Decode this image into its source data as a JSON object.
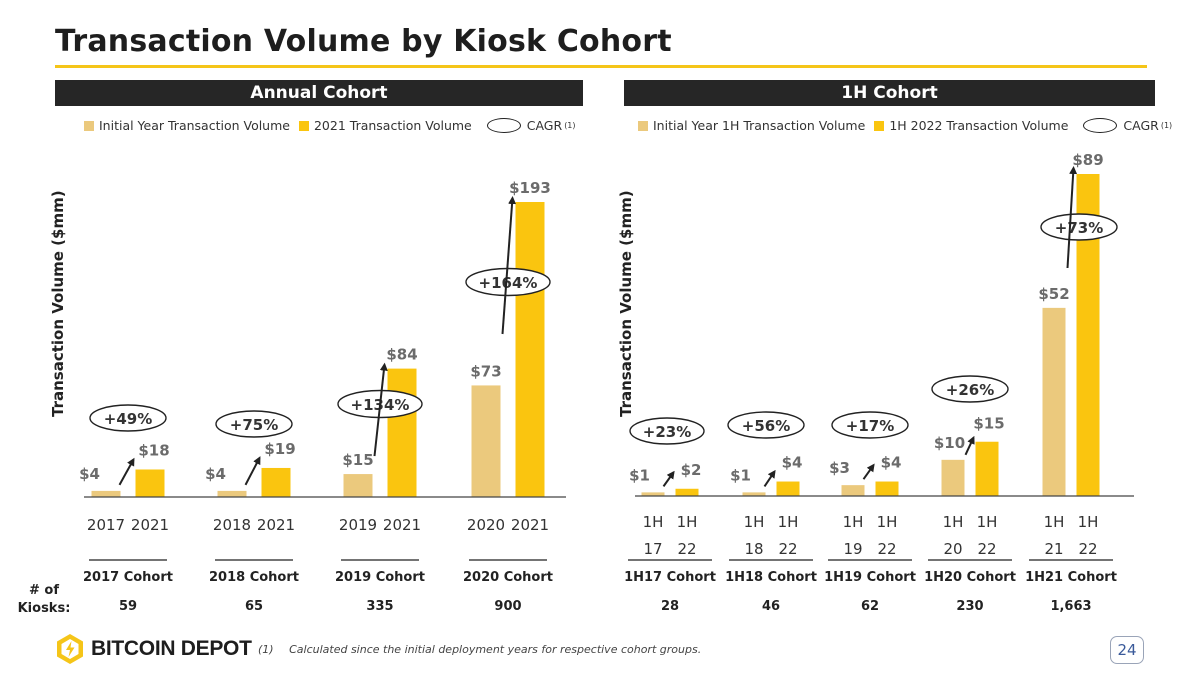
{
  "title": "Transaction Volume by Kiosk Cohort",
  "colors": {
    "initial": "#ebc97d",
    "current": "#fac50f",
    "accent": "#f5c518",
    "dark": "#262626"
  },
  "annual": {
    "header": "Annual Cohort",
    "legend": {
      "initial": "Initial Year Transaction Volume",
      "current": "2021 Transaction Volume",
      "cagr": "CAGR",
      "cagr_note": "(1)"
    },
    "ylabel": "Transaction Volume ($mm)"
  },
  "half": {
    "header": "1H Cohort",
    "legend": {
      "initial": "Initial Year 1H Transaction Volume",
      "current": "1H 2022 Transaction Volume",
      "cagr": "CAGR",
      "cagr_note": "(1)"
    },
    "ylabel": "Transaction Volume ($mm)"
  },
  "kiosks_label": [
    "# of",
    "Kiosks:"
  ],
  "footnote": {
    "num": "(1)",
    "text": "Calculated since the initial deployment years for respective cohort groups."
  },
  "logo": {
    "text": "BITCOIN DEPOT"
  },
  "page": "24",
  "chart_data": [
    {
      "type": "bar",
      "title": "Annual Cohort",
      "ylabel": "Transaction Volume ($mm)",
      "unit": "$mm",
      "ylim": [
        0,
        193
      ],
      "cohorts": [
        {
          "name": "2017 Cohort",
          "kiosks": "59",
          "initial_label": "2017",
          "current_label": "2021",
          "initial": 4,
          "current": 18,
          "initial_text": "$4",
          "current_text": "$18",
          "cagr": "+49%"
        },
        {
          "name": "2018 Cohort",
          "kiosks": "65",
          "initial_label": "2018",
          "current_label": "2021",
          "initial": 4,
          "current": 19,
          "initial_text": "$4",
          "current_text": "$19",
          "cagr": "+75%"
        },
        {
          "name": "2019 Cohort",
          "kiosks": "335",
          "initial_label": "2019",
          "current_label": "2021",
          "initial": 15,
          "current": 84,
          "initial_text": "$15",
          "current_text": "$84",
          "cagr": "+134%"
        },
        {
          "name": "2020 Cohort",
          "kiosks": "900",
          "initial_label": "2020",
          "current_label": "2021",
          "initial": 73,
          "current": 193,
          "initial_text": "$73",
          "current_text": "$193",
          "cagr": "+164%"
        }
      ]
    },
    {
      "type": "bar",
      "title": "1H Cohort",
      "ylabel": "Transaction Volume ($mm)",
      "unit": "$mm",
      "ylim": [
        0,
        89
      ],
      "cohorts": [
        {
          "name": "1H17 Cohort",
          "kiosks": "28",
          "initial_label": [
            "1H",
            "17"
          ],
          "current_label": [
            "1H",
            "22"
          ],
          "initial": 1,
          "current": 2,
          "initial_text": "$1",
          "current_text": "$2",
          "cagr": "+23%"
        },
        {
          "name": "1H18 Cohort",
          "kiosks": "46",
          "initial_label": [
            "1H",
            "18"
          ],
          "current_label": [
            "1H",
            "22"
          ],
          "initial": 1,
          "current": 4,
          "initial_text": "$1",
          "current_text": "$4",
          "cagr": "+56%"
        },
        {
          "name": "1H19 Cohort",
          "kiosks": "62",
          "initial_label": [
            "1H",
            "19"
          ],
          "current_label": [
            "1H",
            "22"
          ],
          "initial": 3,
          "current": 4,
          "initial_text": "$3",
          "current_text": "$4",
          "cagr": "+17%"
        },
        {
          "name": "1H20 Cohort",
          "kiosks": "230",
          "initial_label": [
            "1H",
            "20"
          ],
          "current_label": [
            "1H",
            "22"
          ],
          "initial": 10,
          "current": 15,
          "initial_text": "$10",
          "current_text": "$15",
          "cagr": "+26%"
        },
        {
          "name": "1H21 Cohort",
          "kiosks": "1,663",
          "initial_label": [
            "1H",
            "21"
          ],
          "current_label": [
            "1H",
            "22"
          ],
          "initial": 52,
          "current": 89,
          "initial_text": "$52",
          "current_text": "$89",
          "cagr": "+73%"
        }
      ]
    }
  ]
}
